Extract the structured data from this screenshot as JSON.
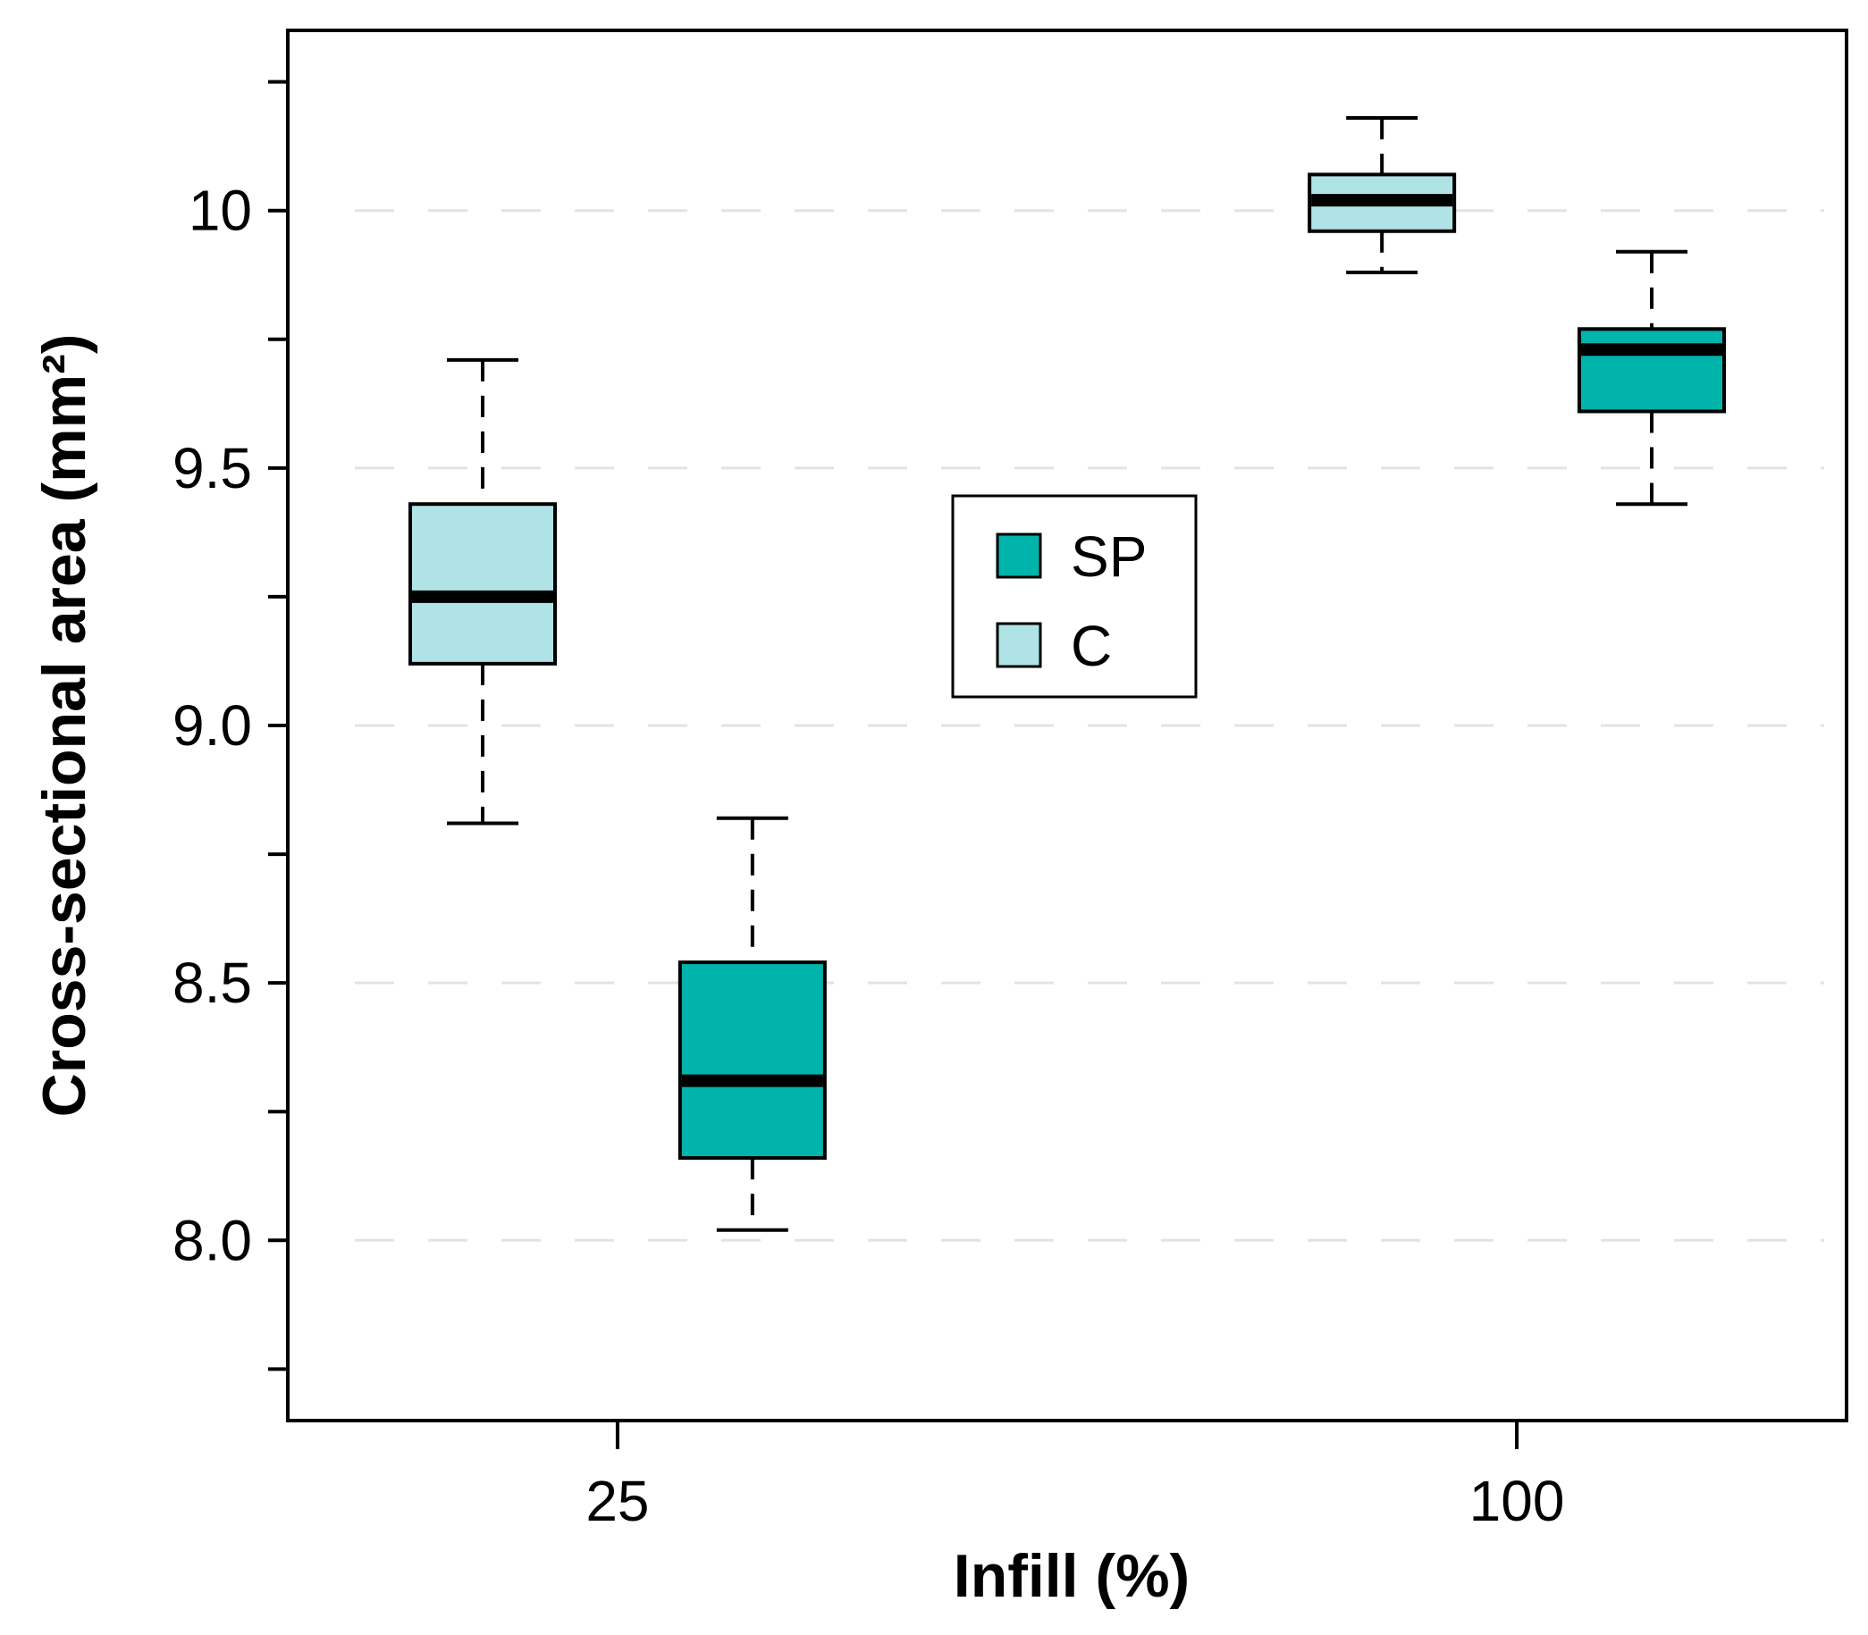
{
  "chart_data": {
    "type": "box",
    "title": "",
    "xlabel": "Infill (%)",
    "ylabel": "Cross-sectional area (mm²)",
    "ylim": [
      7.65,
      10.35
    ],
    "yticks": [
      {
        "value": 8.0,
        "label": "8.0"
      },
      {
        "value": 8.5,
        "label": "8.5"
      },
      {
        "value": 9.0,
        "label": "9.0"
      },
      {
        "value": 9.5,
        "label": "9.5"
      },
      {
        "value": 10.0,
        "label": "10"
      }
    ],
    "yminor": [
      7.75,
      8.25,
      8.75,
      9.25,
      9.75,
      10.25
    ],
    "xticks": [
      {
        "label": "25",
        "pos": 1.5
      },
      {
        "label": "100",
        "pos": 4.5
      }
    ],
    "xlim": [
      0.4,
      5.6
    ],
    "grid": "horizontal-dashed",
    "legend": {
      "position": "center",
      "entries": [
        {
          "label": "SP",
          "color": "#00b3ab"
        },
        {
          "label": "C",
          "color": "#b0e3e6"
        }
      ]
    },
    "series": [
      {
        "name": "C",
        "color": "#b0e3e6",
        "boxes": [
          {
            "group": "25",
            "pos": 1.05,
            "min": 8.81,
            "q1": 9.12,
            "median": 9.25,
            "q3": 9.43,
            "max": 9.71
          },
          {
            "group": "100",
            "pos": 4.05,
            "min": 9.88,
            "q1": 9.96,
            "median": 10.02,
            "q3": 10.07,
            "max": 10.18
          }
        ]
      },
      {
        "name": "SP",
        "color": "#00b3ab",
        "boxes": [
          {
            "group": "25",
            "pos": 1.95,
            "min": 8.02,
            "q1": 8.16,
            "median": 8.31,
            "q3": 8.54,
            "max": 8.82
          },
          {
            "group": "100",
            "pos": 4.95,
            "min": 9.43,
            "q1": 9.61,
            "median": 9.73,
            "q3": 9.77,
            "max": 9.92
          }
        ]
      }
    ]
  }
}
